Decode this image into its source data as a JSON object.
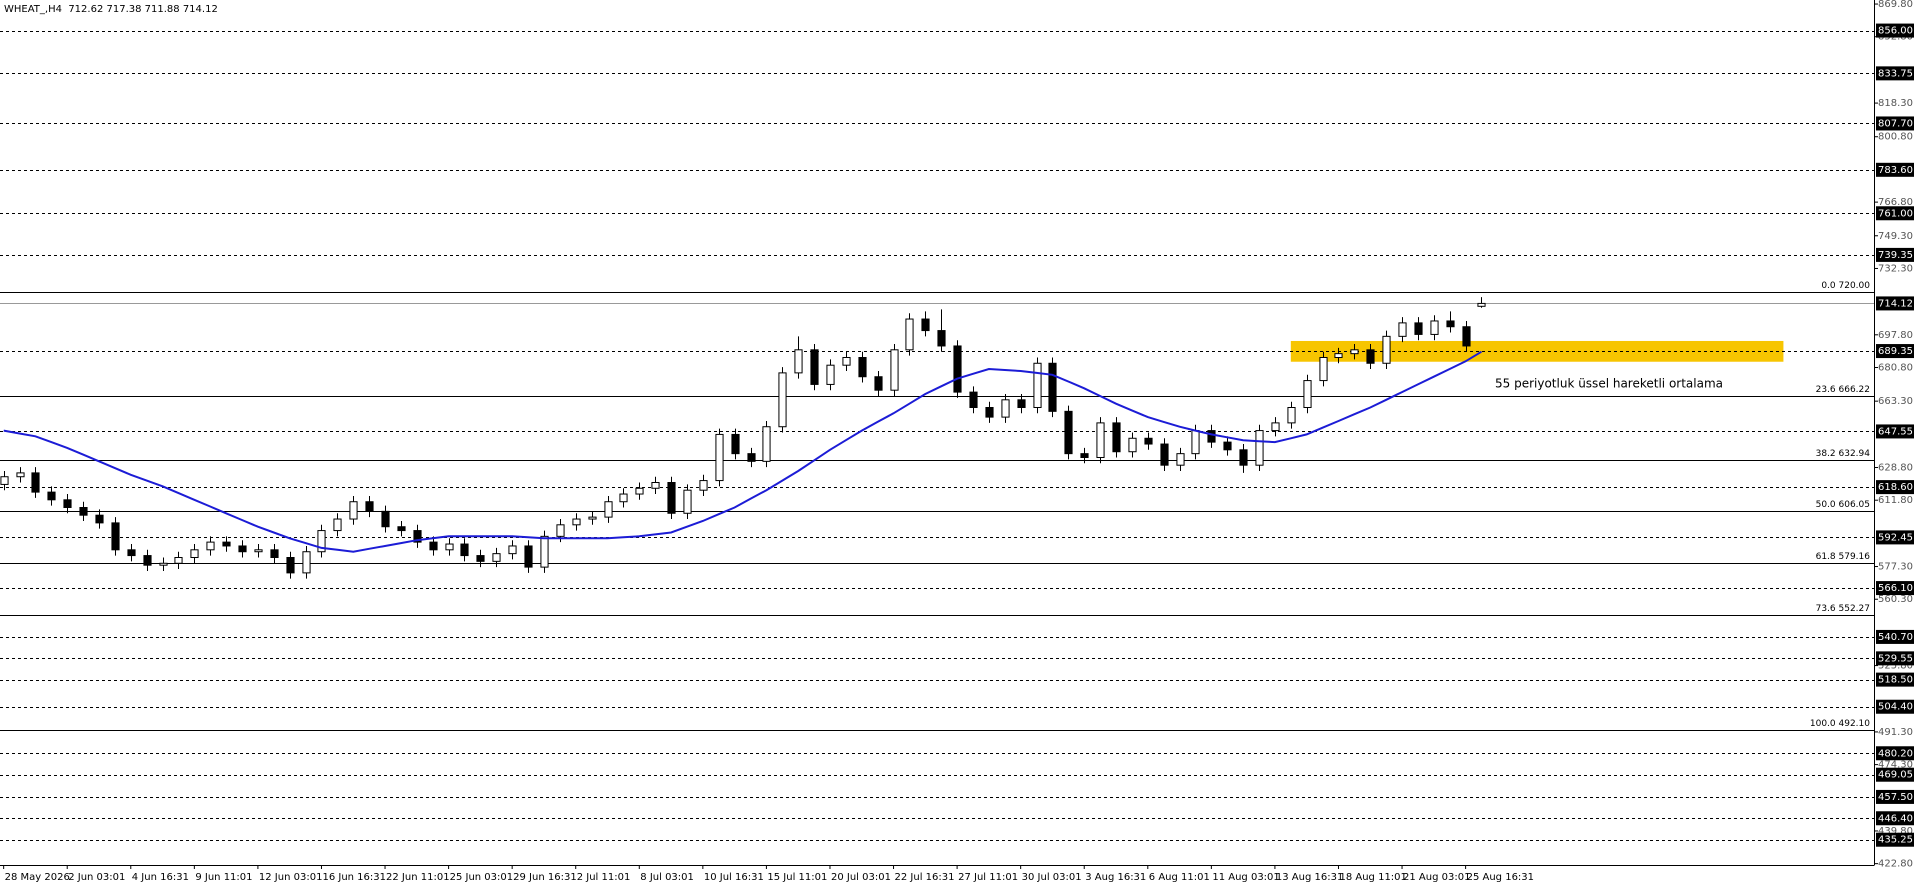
{
  "chart_data": {
    "type": "candlestick",
    "title": "WHEAT_,H4  712.62 717.38 711.88 714.12",
    "candles": [
      [
        620,
        627,
        617,
        624
      ],
      [
        624,
        629,
        621,
        626
      ],
      [
        626,
        629,
        613,
        616
      ],
      [
        616,
        619,
        609,
        612
      ],
      [
        612,
        615,
        605,
        608
      ],
      [
        608,
        611,
        601,
        604
      ],
      [
        604,
        607,
        597,
        600
      ],
      [
        600,
        603,
        583,
        586
      ],
      [
        586,
        589,
        580,
        583
      ],
      [
        583,
        586,
        575,
        578
      ],
      [
        578,
        582,
        575,
        579
      ],
      [
        579,
        585,
        576,
        582
      ],
      [
        582,
        589,
        579,
        586
      ],
      [
        586,
        593,
        583,
        590
      ],
      [
        590,
        593,
        585,
        588
      ],
      [
        588,
        591,
        582,
        585
      ],
      [
        585,
        589,
        582,
        586
      ],
      [
        586,
        589,
        579,
        582
      ],
      [
        582,
        585,
        571,
        574
      ],
      [
        574,
        588,
        571,
        585
      ],
      [
        585,
        599,
        582,
        596
      ],
      [
        596,
        605,
        593,
        602
      ],
      [
        602,
        614,
        599,
        611
      ],
      [
        611,
        614,
        603,
        606
      ],
      [
        606,
        609,
        595,
        598
      ],
      [
        598,
        601,
        593,
        596
      ],
      [
        596,
        599,
        587,
        590
      ],
      [
        590,
        593,
        583,
        586
      ],
      [
        586,
        592,
        583,
        589
      ],
      [
        589,
        592,
        580,
        583
      ],
      [
        583,
        586,
        577,
        580
      ],
      [
        580,
        587,
        577,
        584
      ],
      [
        584,
        591,
        581,
        588
      ],
      [
        588,
        591,
        574,
        577
      ],
      [
        577,
        596,
        574,
        593
      ],
      [
        593,
        602,
        590,
        599
      ],
      [
        599,
        605,
        596,
        602
      ],
      [
        602,
        606,
        599,
        603
      ],
      [
        603,
        614,
        600,
        611
      ],
      [
        611,
        618,
        608,
        615
      ],
      [
        615,
        621,
        612,
        618
      ],
      [
        618,
        624,
        615,
        621
      ],
      [
        621,
        624,
        602,
        605
      ],
      [
        605,
        620,
        602,
        617
      ],
      [
        617,
        625,
        614,
        622
      ],
      [
        622,
        649,
        619,
        646
      ],
      [
        646,
        649,
        633,
        636
      ],
      [
        636,
        639,
        629,
        632
      ],
      [
        632,
        653,
        629,
        650
      ],
      [
        650,
        681,
        647,
        678
      ],
      [
        678,
        697,
        675,
        690
      ],
      [
        690,
        693,
        669,
        672
      ],
      [
        672,
        685,
        669,
        682
      ],
      [
        682,
        689,
        679,
        686
      ],
      [
        686,
        689,
        673,
        676
      ],
      [
        676,
        679,
        666,
        669
      ],
      [
        669,
        693,
        666,
        690
      ],
      [
        690,
        709,
        687,
        706
      ],
      [
        706,
        710,
        697,
        700
      ],
      [
        700,
        711,
        689,
        692
      ],
      [
        692,
        695,
        665,
        668
      ],
      [
        668,
        671,
        657,
        660
      ],
      [
        660,
        663,
        652,
        655
      ],
      [
        655,
        667,
        652,
        664
      ],
      [
        664,
        667,
        657,
        660
      ],
      [
        660,
        686,
        657,
        683
      ],
      [
        683,
        686,
        655,
        658
      ],
      [
        658,
        661,
        633,
        636
      ],
      [
        636,
        639,
        631,
        634
      ],
      [
        634,
        655,
        631,
        652
      ],
      [
        652,
        655,
        634,
        637
      ],
      [
        637,
        647,
        634,
        644
      ],
      [
        644,
        647,
        638,
        641
      ],
      [
        641,
        644,
        627,
        630
      ],
      [
        630,
        639,
        627,
        636
      ],
      [
        636,
        651,
        633,
        648
      ],
      [
        648,
        651,
        639,
        642
      ],
      [
        642,
        645,
        635,
        638
      ],
      [
        638,
        641,
        626,
        630
      ],
      [
        630,
        651,
        627,
        648
      ],
      [
        648,
        655,
        645,
        652
      ],
      [
        652,
        663,
        649,
        660
      ],
      [
        660,
        677,
        657,
        674
      ],
      [
        674,
        689,
        671,
        686
      ],
      [
        686,
        691,
        683,
        688
      ],
      [
        688,
        693,
        685,
        690
      ],
      [
        690,
        693,
        680,
        683
      ],
      [
        683,
        700,
        680,
        697
      ],
      [
        697,
        707,
        694,
        704
      ],
      [
        704,
        707,
        695,
        698
      ],
      [
        698,
        708,
        695,
        705
      ],
      [
        705,
        710,
        699,
        702
      ],
      [
        702,
        705,
        689,
        692
      ],
      [
        712.62,
        717.38,
        711.88,
        714.12
      ]
    ],
    "ema": {
      "color": "#1c1cd6",
      "values": [
        648,
        646.5,
        645,
        642,
        639,
        635.5,
        632,
        628.5,
        625,
        622,
        619,
        615.5,
        612,
        608.5,
        605,
        601.5,
        598,
        595,
        592,
        589.5,
        587,
        586,
        585,
        586.5,
        588,
        589.5,
        591,
        592,
        593,
        593,
        593,
        593,
        593,
        592.5,
        592,
        592,
        592,
        592,
        592,
        592.5,
        593,
        594,
        595,
        598,
        601,
        604.5,
        608,
        612.5,
        617,
        622,
        627,
        632.5,
        638,
        643,
        648,
        652.5,
        657,
        662,
        667,
        671,
        675,
        677.5,
        680,
        679.5,
        679,
        678,
        677,
        673.5,
        670,
        666,
        662,
        658.5,
        655,
        652.5,
        650,
        648,
        646,
        644.5,
        643,
        642.5,
        642,
        644,
        646,
        649.5,
        653,
        656.5,
        660,
        664,
        668,
        672,
        676,
        680,
        684,
        689
      ]
    },
    "annotation": "55 periyotluk üssel hareketli ortalama",
    "annotation_color": "#2a2acc",
    "current_price": 714.12,
    "levels": [
      {
        "value": 856,
        "label": "856.00"
      },
      {
        "value": 833.75,
        "label": "833.75"
      },
      {
        "value": 807.7,
        "label": "807.70"
      },
      {
        "value": 783.6,
        "label": "783.60"
      },
      {
        "value": 761,
        "label": "761.00"
      },
      {
        "value": 739.35,
        "label": "739.35"
      },
      {
        "value": 689.35,
        "label": "689.35"
      },
      {
        "value": 647.55,
        "label": "647.55"
      },
      {
        "value": 618.6,
        "label": "618.60"
      },
      {
        "value": 592.45,
        "label": "592.45"
      },
      {
        "value": 566.1,
        "label": "566.10"
      },
      {
        "value": 540.7,
        "label": "540.70"
      },
      {
        "value": 529.55,
        "label": "529.55"
      },
      {
        "value": 518.5,
        "label": "518.50"
      },
      {
        "value": 504.4,
        "label": "504.40"
      },
      {
        "value": 480.2,
        "label": "480.20"
      },
      {
        "value": 469.05,
        "label": "469.05"
      },
      {
        "value": 457.5,
        "label": "457.50"
      },
      {
        "value": 446.4,
        "label": "446.40"
      },
      {
        "value": 435.25,
        "label": "435.25"
      }
    ],
    "fib_levels": [
      {
        "value": 720,
        "label": "0.0 720.00"
      },
      {
        "value": 666.22,
        "label": "23.6 666.22"
      },
      {
        "value": 632.94,
        "label": "38.2 632.94"
      },
      {
        "value": 606.05,
        "label": "50.0 606.05"
      },
      {
        "value": 579.16,
        "label": "61.8 579.16"
      },
      {
        "value": 552.27,
        "label": "73.6 552.27"
      },
      {
        "value": 492.1,
        "label": "100.0 492.10"
      }
    ],
    "zone": {
      "x": [
        81,
        112
      ],
      "y": [
        683.8,
        694.6
      ],
      "color": "#f7c500"
    },
    "xlim": [
      -0.23,
      117.7
    ],
    "xticks": [
      {
        "value": 0,
        "label": "28 May 2026"
      },
      {
        "value": 4,
        "label": "2 Jun 03:01"
      },
      {
        "value": 8,
        "label": "4 Jun 16:31"
      },
      {
        "value": 12,
        "label": "9 Jun 11:01"
      },
      {
        "value": 16,
        "label": "12 Jun 03:01"
      },
      {
        "value": 20,
        "label": "16 Jun 16:31"
      },
      {
        "value": 24,
        "label": "22 Jun 11:01"
      },
      {
        "value": 28,
        "label": "25 Jun 03:01"
      },
      {
        "value": 32,
        "label": "29 Jun 16:31"
      },
      {
        "value": 36,
        "label": "2 Jul 11:01"
      },
      {
        "value": 40,
        "label": "8 Jul 03:01"
      },
      {
        "value": 44,
        "label": "10 Jul 16:31"
      },
      {
        "value": 48,
        "label": "15 Jul 11:01"
      },
      {
        "value": 52,
        "label": "20 Jul 03:01"
      },
      {
        "value": 56,
        "label": "22 Jul 16:31"
      },
      {
        "value": 60,
        "label": "27 Jul 11:01"
      },
      {
        "value": 64,
        "label": "30 Jul 03:01"
      },
      {
        "value": 68,
        "label": "3 Aug 16:31"
      },
      {
        "value": 72,
        "label": "6 Aug 11:01"
      },
      {
        "value": 76,
        "label": "11 Aug 03:01"
      },
      {
        "value": 80,
        "label": "13 Aug 16:31"
      },
      {
        "value": 84,
        "label": "18 Aug 11:01"
      },
      {
        "value": 88,
        "label": "21 Aug 03:01"
      },
      {
        "value": 92,
        "label": "25 Aug 16:31"
      }
    ],
    "ylim": [
      422.1,
      871.9
    ],
    "yticks": [
      {
        "value": 869.8,
        "label": "869.80"
      },
      {
        "value": 852.8,
        "label": "852.80"
      },
      {
        "value": 818.3,
        "label": "818.30"
      },
      {
        "value": 800.8,
        "label": "800.80"
      },
      {
        "value": 766.8,
        "label": "766.80"
      },
      {
        "value": 749.3,
        "label": "749.30"
      },
      {
        "value": 732.3,
        "label": "732.30"
      },
      {
        "value": 697.8,
        "label": "697.80"
      },
      {
        "value": 680.8,
        "label": "680.80"
      },
      {
        "value": 663.3,
        "label": "663.30"
      },
      {
        "value": 628.8,
        "label": "628.80"
      },
      {
        "value": 611.8,
        "label": "611.80"
      },
      {
        "value": 577.3,
        "label": "577.30"
      },
      {
        "value": 560.3,
        "label": "560.30"
      },
      {
        "value": 525.8,
        "label": "525.80"
      },
      {
        "value": 491.3,
        "label": "491.30"
      },
      {
        "value": 474.3,
        "label": "474.30"
      },
      {
        "value": 439.8,
        "label": "439.80"
      },
      {
        "value": 422.8,
        "label": "422.80"
      }
    ]
  }
}
